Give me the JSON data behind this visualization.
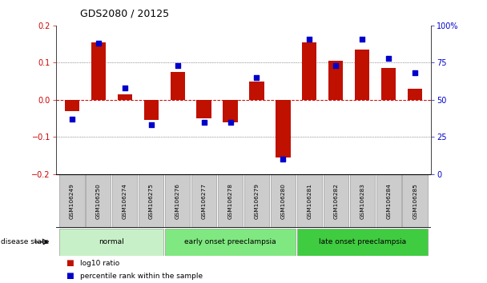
{
  "title": "GDS2080 / 20125",
  "samples": [
    "GSM106249",
    "GSM106250",
    "GSM106274",
    "GSM106275",
    "GSM106276",
    "GSM106277",
    "GSM106278",
    "GSM106279",
    "GSM106280",
    "GSM106281",
    "GSM106282",
    "GSM106283",
    "GSM106284",
    "GSM106285"
  ],
  "log10_ratio": [
    -0.03,
    0.155,
    0.015,
    -0.055,
    0.075,
    -0.05,
    -0.06,
    0.048,
    -0.155,
    0.155,
    0.105,
    0.135,
    0.085,
    0.03
  ],
  "percentile_rank": [
    37,
    88,
    58,
    33,
    73,
    35,
    35,
    65,
    10,
    91,
    73,
    91,
    78,
    68
  ],
  "groups": [
    {
      "label": "normal",
      "start": 0,
      "end": 4,
      "color": "#c8f0c8"
    },
    {
      "label": "early onset preeclampsia",
      "start": 4,
      "end": 9,
      "color": "#80e880"
    },
    {
      "label": "late onset preeclampsia",
      "start": 9,
      "end": 14,
      "color": "#40cc40"
    }
  ],
  "bar_color": "#c01000",
  "dot_color": "#0000cc",
  "zero_line_color": "#cc0000",
  "left_yticks": [
    -0.2,
    -0.1,
    0.0,
    0.1,
    0.2
  ],
  "right_yticks": [
    0,
    25,
    50,
    75,
    100
  ],
  "right_yticklabels": [
    "0",
    "25",
    "50",
    "75",
    "100%"
  ],
  "ylim_left": [
    -0.2,
    0.2
  ],
  "ylim_right": [
    0,
    100
  ],
  "legend": [
    "log10 ratio",
    "percentile rank within the sample"
  ],
  "disease_state_label": "disease state",
  "sample_box_color": "#cccccc",
  "sample_box_edge": "#888888"
}
